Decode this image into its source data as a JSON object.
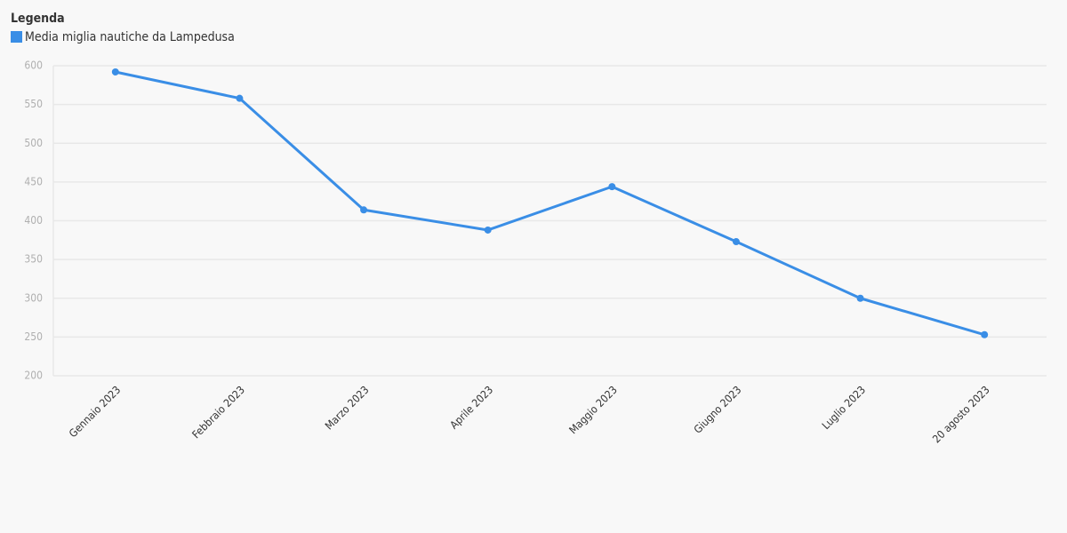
{
  "chart_data": {
    "type": "line",
    "legend_title": "Legenda",
    "categories": [
      "Gennaio 2023",
      "Febbraio 2023",
      "Marzo 2023",
      "Aprile 2023",
      "Maggio 2023",
      "Giugno 2023",
      "Luglio 2023",
      "20 agosto 2023"
    ],
    "series": [
      {
        "name": "Media miglia nautiche da Lampedusa",
        "color": "#3a8ee6",
        "values": [
          592,
          558,
          414,
          388,
          444,
          373,
          300,
          253
        ]
      }
    ],
    "ylim": [
      200,
      600
    ],
    "yticks": [
      200,
      250,
      300,
      350,
      400,
      450,
      500,
      550,
      600
    ],
    "grid": true
  }
}
